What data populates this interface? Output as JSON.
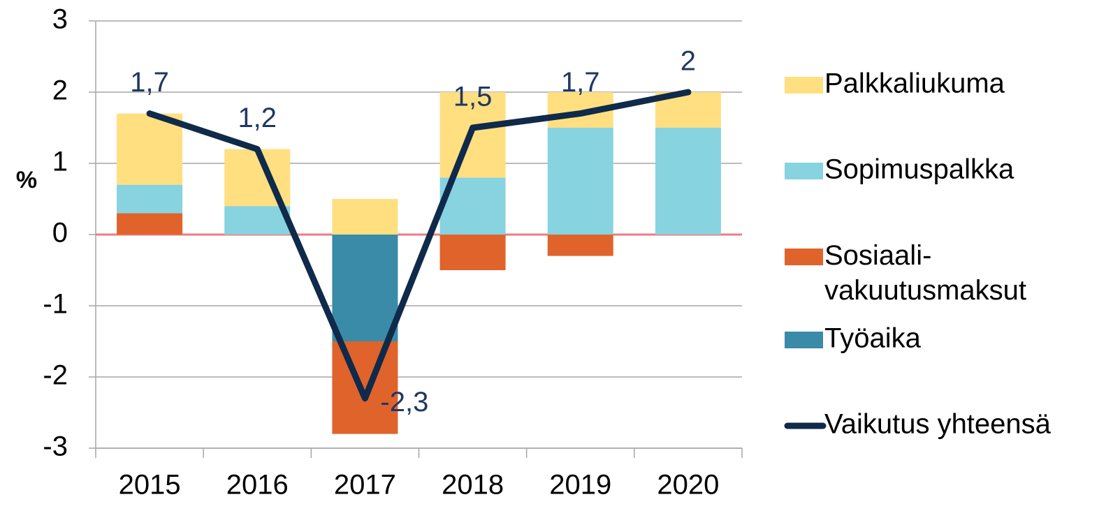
{
  "chart_data": {
    "type": "stacked-bar-line",
    "ylabel": "%",
    "categories": [
      "2015",
      "2016",
      "2017",
      "2018",
      "2019",
      "2020"
    ],
    "ylim": [
      -3,
      3
    ],
    "yticks": [
      -3,
      -2,
      -1,
      0,
      1,
      2,
      3
    ],
    "grid": true,
    "series": [
      {
        "name": "Palkkaliukuma",
        "color": "#ffdf80",
        "values": [
          1.0,
          0.8,
          0.5,
          1.2,
          0.5,
          0.5
        ]
      },
      {
        "name": "Sopimuspalkka",
        "color": "#87d3e0",
        "values": [
          0.4,
          0.4,
          0,
          0.8,
          1.5,
          1.5
        ]
      },
      {
        "name": "Sosiaali-vakuutusmaksut",
        "color": "#e0632b",
        "values": [
          0.3,
          0,
          -1.3,
          -0.5,
          -0.3,
          0
        ]
      },
      {
        "name": "Työaika",
        "color": "#3a8ba8",
        "values": [
          0,
          0,
          -1.5,
          0,
          0,
          0
        ]
      },
      {
        "name": "Vaikutus yhteensä",
        "color": "#0f2a4a",
        "type": "line",
        "values": [
          1.7,
          1.2,
          -2.3,
          1.5,
          1.7,
          2
        ],
        "value_labels": [
          "1,7",
          "1,2",
          "-2,3",
          "1,5",
          "1,7",
          "2"
        ]
      }
    ],
    "legend": "right"
  }
}
